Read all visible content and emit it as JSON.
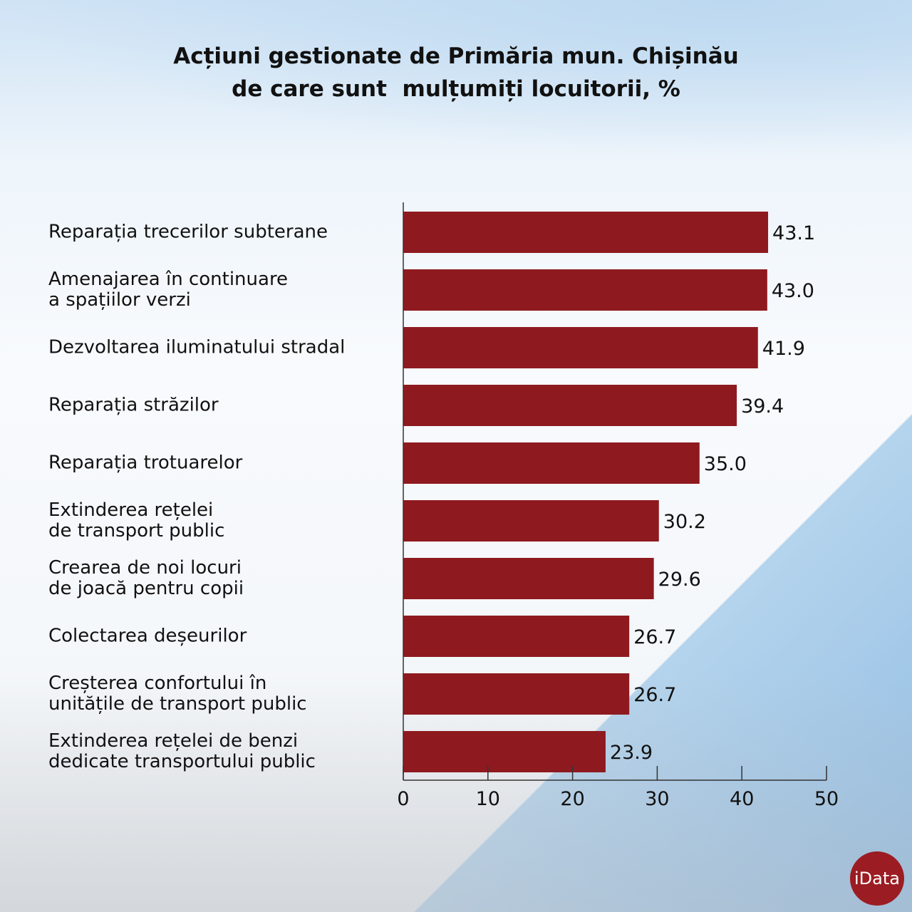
{
  "chart_data": {
    "type": "bar",
    "orientation": "horizontal",
    "title": [
      "Acțiuni gestionate de Primăria mun. Chișinău",
      "de care sunt  mulțumiți locuitorii, %"
    ],
    "categories": [
      "Reparația trecerilor subterane",
      "Amenajarea în continuare\na spațiilor verzi",
      "Dezvoltarea iluminatului stradal",
      "Reparația străzilor",
      "Reparația trotuarelor",
      "Extinderea rețelei\nde transport public",
      "Crearea de noi locuri\nde joacă pentru copii",
      "Colectarea deșeurilor",
      "Creșterea confortului în\nunitățile de transport public",
      "Extinderea rețelei de benzi\ndedicate transportului public"
    ],
    "values": [
      43.1,
      43.0,
      41.9,
      39.4,
      35.0,
      30.2,
      29.6,
      26.7,
      26.7,
      23.9
    ],
    "value_labels": [
      "43.1",
      "43.0",
      "41.9",
      "39.4",
      "35.0",
      "30.2",
      "29.6",
      "26.7",
      "26.7",
      "23.9"
    ],
    "xlim": [
      0,
      50
    ],
    "xticks": [
      "0",
      "10",
      "20",
      "30",
      "40",
      "50"
    ],
    "bar_color": "#8e1a1f",
    "grid": false
  },
  "logo": "iData"
}
